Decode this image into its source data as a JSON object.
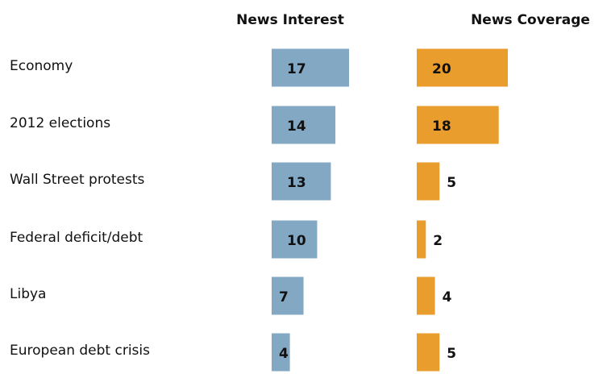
{
  "chart_data": {
    "type": "bar",
    "categories": [
      "Economy",
      "2012 elections",
      "Wall Street protests",
      "Federal deficit/debt",
      "Libya",
      "European debt crisis"
    ],
    "series": [
      {
        "name": "News Interest",
        "values": [
          17,
          14,
          13,
          10,
          7,
          4
        ],
        "color": "#83a8c3"
      },
      {
        "name": "News Coverage",
        "values": [
          20,
          18,
          5,
          2,
          4,
          5
        ],
        "color": "#e99d2c"
      }
    ],
    "title": "",
    "xlabel": "",
    "ylabel": "",
    "grid": false,
    "legend": "column headers",
    "data_labels": true
  }
}
